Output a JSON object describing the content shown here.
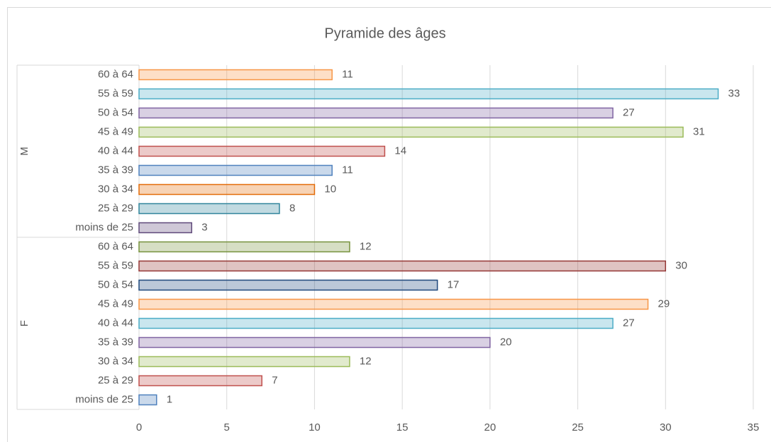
{
  "chart_data": {
    "type": "bar",
    "orientation": "horizontal",
    "title": "Pyramide des âges",
    "groups": [
      {
        "name": "M",
        "categories": [
          "60 à 64",
          "55 à 59",
          "50 à 54",
          "45 à 49",
          "40 à 44",
          "35 à 39",
          "30 à 34",
          "25 à 29",
          "moins de 25"
        ],
        "values": [
          11,
          33,
          27,
          31,
          14,
          11,
          10,
          8,
          3
        ],
        "colors": [
          "#f79646",
          "#4bacc6",
          "#8064a2",
          "#9bbb59",
          "#c0504d",
          "#4f81bd",
          "#e36c09",
          "#31859c",
          "#5f497a"
        ]
      },
      {
        "name": "F",
        "categories": [
          "60 à 64",
          "55 à 59",
          "50 à 54",
          "45 à 49",
          "40 à 44",
          "35 à 39",
          "30 à 34",
          "25 à 29",
          "moins de 25"
        ],
        "values": [
          12,
          30,
          17,
          29,
          27,
          20,
          12,
          7,
          1
        ],
        "colors": [
          "#76923c",
          "#953735",
          "#1f497d",
          "#f79646",
          "#4bacc6",
          "#8064a2",
          "#9bbb59",
          "#c0504d",
          "#4f81bd"
        ]
      }
    ],
    "xlim": [
      0,
      35
    ],
    "xticks": [
      0,
      5,
      10,
      15,
      20,
      25,
      30,
      35
    ],
    "grid": true,
    "data_labels": true
  }
}
